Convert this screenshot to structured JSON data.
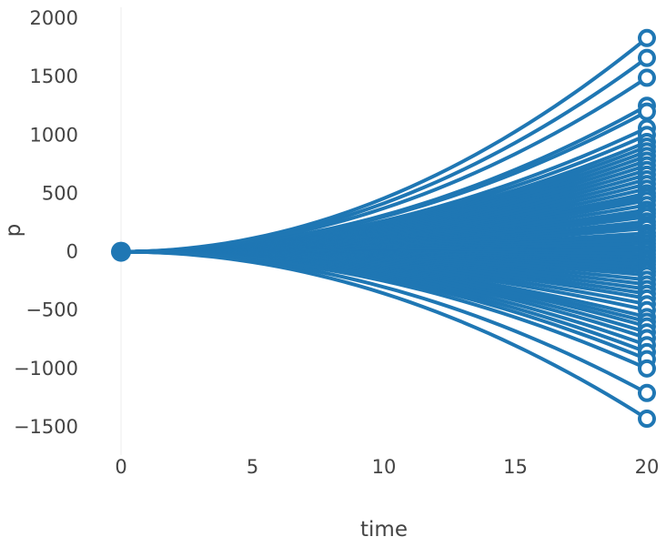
{
  "chart_data": {
    "type": "line",
    "xlabel": "time",
    "ylabel": "p",
    "xlim": [
      0,
      20
    ],
    "ylim": [
      -1500,
      2000
    ],
    "x_ticks": [
      0,
      5,
      10,
      15,
      20
    ],
    "x_tick_labels": [
      "0",
      "5",
      "10",
      "15",
      "20"
    ],
    "y_ticks": [
      -1500,
      -1000,
      -500,
      0,
      500,
      1000,
      1500,
      2000
    ],
    "y_tick_labels": [
      "−1500",
      "−1000",
      "−500",
      "0",
      "500",
      "1000",
      "1500",
      "2000"
    ],
    "grid": true,
    "legend": "none",
    "line_color": "#1f77b4",
    "grid_color": "#eeeeee",
    "start_marker": "filled-circle",
    "end_marker": "open-circle",
    "curve_exponent": 2,
    "start": {
      "x": 0,
      "y": 0
    },
    "end_x": 20,
    "final_values": [
      1830,
      1660,
      1490,
      1250,
      1200,
      1060,
      1000,
      940,
      900,
      860,
      820,
      780,
      740,
      700,
      660,
      620,
      580,
      540,
      500,
      470,
      440,
      400,
      360,
      330,
      300,
      260,
      230,
      200,
      160,
      130,
      100,
      70,
      40,
      10,
      -20,
      -50,
      -80,
      -110,
      -140,
      -170,
      -200,
      -240,
      -280,
      -320,
      -360,
      -400,
      -450,
      -500,
      -560,
      -600,
      -640,
      -690,
      -740,
      -800,
      -860,
      -920,
      -1000,
      -1210,
      -1430
    ]
  }
}
